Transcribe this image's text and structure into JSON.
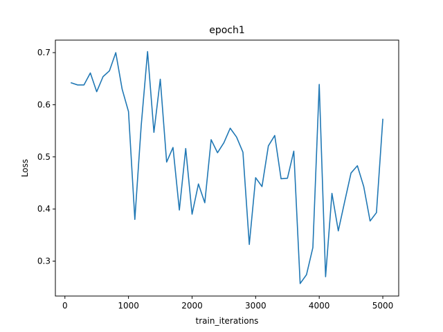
{
  "chart_data": {
    "type": "line",
    "title": "epoch1",
    "xlabel": "train_iterations",
    "ylabel": "Loss",
    "xlim": [
      -150,
      5250
    ],
    "ylim": [
      0.233,
      0.724
    ],
    "grid": false,
    "xticks": [
      0,
      1000,
      2000,
      3000,
      4000,
      5000
    ],
    "xtick_labels": [
      "0",
      "1000",
      "2000",
      "3000",
      "4000",
      "5000"
    ],
    "yticks": [
      0.3,
      0.4,
      0.5,
      0.6,
      0.7
    ],
    "ytick_labels": [
      "0.3",
      "0.4",
      "0.5",
      "0.6",
      "0.7"
    ],
    "series": [
      {
        "color": "#1f77b4",
        "x": [
          100,
          200,
          300,
          400,
          500,
          600,
          700,
          800,
          900,
          1000,
          1100,
          1200,
          1300,
          1400,
          1500,
          1600,
          1700,
          1800,
          1900,
          2000,
          2100,
          2200,
          2300,
          2400,
          2500,
          2600,
          2700,
          2800,
          2900,
          3000,
          3100,
          3200,
          3300,
          3400,
          3500,
          3600,
          3700,
          3800,
          3900,
          4000,
          4100,
          4200,
          4300,
          4400,
          4500,
          4600,
          4700,
          4800,
          4900,
          5000
        ],
        "values": [
          0.642,
          0.638,
          0.638,
          0.661,
          0.625,
          0.654,
          0.665,
          0.7,
          0.63,
          0.587,
          0.38,
          0.56,
          0.702,
          0.547,
          0.649,
          0.49,
          0.518,
          0.398,
          0.516,
          0.39,
          0.448,
          0.412,
          0.533,
          0.508,
          0.527,
          0.555,
          0.538,
          0.509,
          0.332,
          0.46,
          0.443,
          0.521,
          0.541,
          0.458,
          0.459,
          0.511,
          0.257,
          0.274,
          0.326,
          0.639,
          0.27,
          0.43,
          0.358,
          0.414,
          0.469,
          0.483,
          0.443,
          0.377,
          0.393,
          0.572
        ]
      }
    ]
  }
}
